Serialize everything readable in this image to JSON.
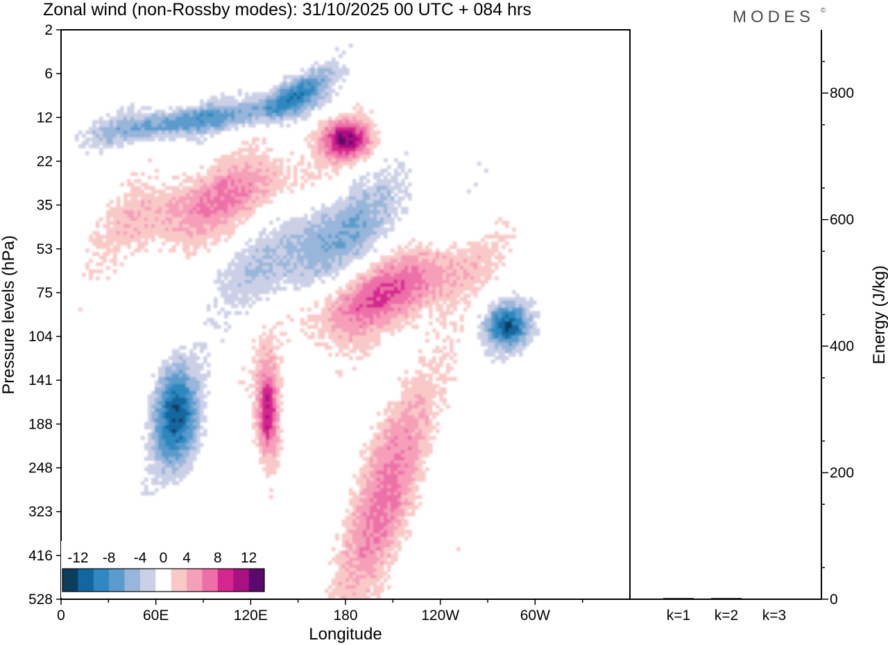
{
  "header": {
    "title": "Zonal wind (non-Rossby modes):  31/10/2025  00 UTC  + 084 hrs",
    "brand": "MODES",
    "brand_mark": "©"
  },
  "chart_data": [
    {
      "type": "heatmap",
      "title": "Zonal wind (non-Rossby modes):  31/10/2025  00 UTC  + 084 hrs",
      "xlabel": "Longitude",
      "ylabel": "Pressure levels (hPa)",
      "x_ticks": [
        "0",
        "60E",
        "120E",
        "180",
        "120W",
        "60W"
      ],
      "x_tick_values": [
        0,
        60,
        120,
        180,
        240,
        300
      ],
      "xlim": [
        0,
        360
      ],
      "y_ticks": [
        "2",
        "6",
        "12",
        "22",
        "35",
        "53",
        "75",
        "104",
        "141",
        "188",
        "248",
        "323",
        "416",
        "528"
      ],
      "y_scale": "log-pressure, inverted (2 at top, 528 at bottom)",
      "colorbar": {
        "labels": [
          "-12",
          "-8",
          "-4",
          "0",
          "4",
          "8",
          "12"
        ],
        "levels": [
          -14,
          -12,
          -10,
          -8,
          -6,
          -4,
          -2,
          2,
          4,
          6,
          8,
          10,
          12,
          14
        ],
        "colors": [
          "#0b3d5c",
          "#1366a0",
          "#2f88c0",
          "#5c9ccc",
          "#98b6da",
          "#ccd0e6",
          "#ffffff",
          "#f9c9c7",
          "#f59fb9",
          "#ee6fa8",
          "#d4268f",
          "#a8117f",
          "#5a0a6c"
        ],
        "placement": "bottom-left"
      },
      "features": [
        {
          "name": "easterly band",
          "sign": "negative",
          "lon_range": [
            10,
            140
          ],
          "plev_range": [
            10,
            16
          ],
          "peak": -8
        },
        {
          "name": "easterly band",
          "sign": "negative",
          "lon_range": [
            120,
            175
          ],
          "plev_range": [
            6,
            12
          ],
          "peak": -9
        },
        {
          "name": "westerly jet",
          "sign": "positive",
          "lon_range": [
            160,
            200
          ],
          "plev_range": [
            12,
            22
          ],
          "peak": 11
        },
        {
          "name": "westerly band",
          "sign": "positive",
          "lon_range": [
            20,
            170
          ],
          "plev_range": [
            22,
            50
          ],
          "peak": 6
        },
        {
          "name": "easterly band",
          "sign": "negative",
          "lon_range": [
            100,
            230
          ],
          "plev_range": [
            30,
            75
          ],
          "peak": -6
        },
        {
          "name": "westerly band",
          "sign": "positive",
          "lon_range": [
            145,
            270
          ],
          "plev_range": [
            55,
            100
          ],
          "peak": 8
        },
        {
          "name": "easterly core",
          "sign": "negative",
          "lon_range": [
            55,
            90
          ],
          "plev_range": [
            120,
            260
          ],
          "peak": -11
        },
        {
          "name": "westerly core",
          "sign": "positive",
          "lon_range": [
            122,
            140
          ],
          "plev_range": [
            120,
            250
          ],
          "peak": 11
        },
        {
          "name": "easterly core",
          "sign": "negative",
          "lon_range": [
            265,
            300
          ],
          "plev_range": [
            80,
            115
          ],
          "peak": -11
        },
        {
          "name": "westerly band",
          "sign": "positive",
          "lon_range": [
            170,
            240
          ],
          "plev_range": [
            150,
            528
          ],
          "peak": 6
        }
      ]
    },
    {
      "type": "bar",
      "title": "",
      "ylabel": "Energy (J/kg)",
      "categories": [
        "k=1",
        "k=2",
        "k=3"
      ],
      "values": [
        2,
        2,
        1
      ],
      "ylim": [
        0,
        900
      ],
      "y_ticks": [
        "0",
        "200",
        "400",
        "600",
        "800"
      ],
      "y_tick_values": [
        0,
        200,
        400,
        600,
        800
      ]
    }
  ]
}
